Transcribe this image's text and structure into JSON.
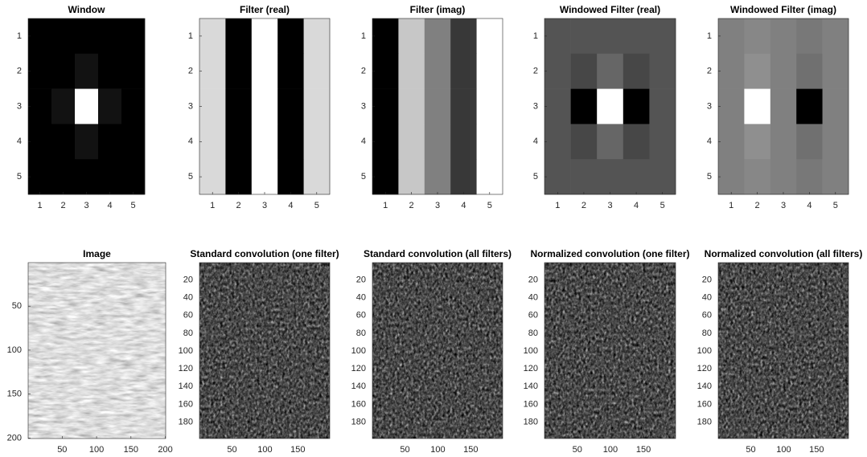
{
  "chart_data": [
    {
      "type": "heatmap",
      "title": "Window",
      "colormap": "gray",
      "clim": [
        0,
        1
      ],
      "y_reversed": true,
      "z": [
        [
          0,
          0,
          0,
          0,
          0
        ],
        [
          0,
          0,
          0.07,
          0,
          0
        ],
        [
          0,
          0.07,
          1,
          0.07,
          0
        ],
        [
          0,
          0,
          0.07,
          0,
          0
        ],
        [
          0,
          0,
          0,
          0,
          0
        ]
      ],
      "xlim": [
        0.5,
        5.5
      ],
      "ylim": [
        0.5,
        5.5
      ],
      "xticks": [
        1,
        2,
        3,
        4,
        5
      ],
      "yticks": [
        1,
        2,
        3,
        4,
        5
      ]
    },
    {
      "type": "heatmap",
      "title": "Filter (real)",
      "colormap": "gray",
      "clim": [
        0,
        1
      ],
      "y_reversed": true,
      "z": [
        [
          0.85,
          0,
          1,
          0,
          0.85
        ],
        [
          0.85,
          0,
          1,
          0,
          0.85
        ],
        [
          0.85,
          0,
          1,
          0,
          0.85
        ],
        [
          0.85,
          0,
          1,
          0,
          0.85
        ],
        [
          0.85,
          0,
          1,
          0,
          0.85
        ]
      ],
      "xlim": [
        0.5,
        5.5
      ],
      "ylim": [
        0.5,
        5.5
      ],
      "xticks": [
        1,
        2,
        3,
        4,
        5
      ],
      "yticks": [
        1,
        2,
        3,
        4,
        5
      ]
    },
    {
      "type": "heatmap",
      "title": "Filter (imag)",
      "colormap": "gray",
      "clim": [
        0,
        1
      ],
      "y_reversed": true,
      "z": [
        [
          0,
          0.78,
          0.5,
          0.22,
          1
        ],
        [
          0,
          0.78,
          0.5,
          0.22,
          1
        ],
        [
          0,
          0.78,
          0.5,
          0.22,
          1
        ],
        [
          0,
          0.78,
          0.5,
          0.22,
          1
        ],
        [
          0,
          0.78,
          0.5,
          0.22,
          1
        ]
      ],
      "xlim": [
        0.5,
        5.5
      ],
      "ylim": [
        0.5,
        5.5
      ],
      "xticks": [
        1,
        2,
        3,
        4,
        5
      ],
      "yticks": [
        1,
        2,
        3,
        4,
        5
      ]
    },
    {
      "type": "heatmap",
      "title": "Windowed Filter (real)",
      "colormap": "gray",
      "clim": [
        0,
        1
      ],
      "y_reversed": true,
      "z": [
        [
          0.33,
          0.33,
          0.33,
          0.33,
          0.33
        ],
        [
          0.33,
          0.28,
          0.4,
          0.28,
          0.33
        ],
        [
          0.33,
          0,
          1,
          0,
          0.33
        ],
        [
          0.33,
          0.28,
          0.4,
          0.28,
          0.33
        ],
        [
          0.33,
          0.33,
          0.33,
          0.33,
          0.33
        ]
      ],
      "xlim": [
        0.5,
        5.5
      ],
      "ylim": [
        0.5,
        5.5
      ],
      "xticks": [
        1,
        2,
        3,
        4,
        5
      ],
      "yticks": [
        1,
        2,
        3,
        4,
        5
      ]
    },
    {
      "type": "heatmap",
      "title": "Windowed Filter (imag)",
      "colormap": "gray",
      "clim": [
        0,
        1
      ],
      "y_reversed": true,
      "z": [
        [
          0.5,
          0.53,
          0.5,
          0.47,
          0.5
        ],
        [
          0.5,
          0.56,
          0.5,
          0.44,
          0.5
        ],
        [
          0.5,
          1,
          0.5,
          0,
          0.5
        ],
        [
          0.5,
          0.56,
          0.5,
          0.44,
          0.5
        ],
        [
          0.5,
          0.53,
          0.5,
          0.47,
          0.5
        ]
      ],
      "xlim": [
        0.5,
        5.5
      ],
      "ylim": [
        0.5,
        5.5
      ],
      "xticks": [
        1,
        2,
        3,
        4,
        5
      ],
      "yticks": [
        1,
        2,
        3,
        4,
        5
      ]
    },
    {
      "type": "image",
      "title": "Image",
      "y_reversed": true,
      "xlim": [
        0.5,
        200.5
      ],
      "ylim": [
        0.5,
        200.5
      ],
      "xticks": [
        50,
        100,
        150,
        200
      ],
      "yticks": [
        50,
        100,
        150,
        200
      ]
    },
    {
      "type": "image",
      "title": "Standard convolution (one filter)",
      "y_reversed": true,
      "xlim": [
        0.5,
        198.5
      ],
      "ylim": [
        0.5,
        198.5
      ],
      "xticks": [
        50,
        100,
        150
      ],
      "yticks": [
        20,
        40,
        60,
        80,
        100,
        120,
        140,
        160,
        180
      ]
    },
    {
      "type": "image",
      "title": "Standard convolution (all filters)",
      "y_reversed": true,
      "xlim": [
        0.5,
        198.5
      ],
      "ylim": [
        0.5,
        198.5
      ],
      "xticks": [
        50,
        100,
        150
      ],
      "yticks": [
        20,
        40,
        60,
        80,
        100,
        120,
        140,
        160,
        180
      ]
    },
    {
      "type": "image",
      "title": "Normalized convolution (one filter)",
      "y_reversed": true,
      "xlim": [
        0.5,
        198.5
      ],
      "ylim": [
        0.5,
        198.5
      ],
      "xticks": [
        50,
        100,
        150
      ],
      "yticks": [
        20,
        40,
        60,
        80,
        100,
        120,
        140,
        160,
        180
      ]
    },
    {
      "type": "image",
      "title": "Normalized convolution (all filters)",
      "y_reversed": true,
      "xlim": [
        0.5,
        198.5
      ],
      "ylim": [
        0.5,
        198.5
      ],
      "xticks": [
        50,
        100,
        150
      ],
      "yticks": [
        20,
        40,
        60,
        80,
        100,
        120,
        140,
        160,
        180
      ]
    }
  ]
}
